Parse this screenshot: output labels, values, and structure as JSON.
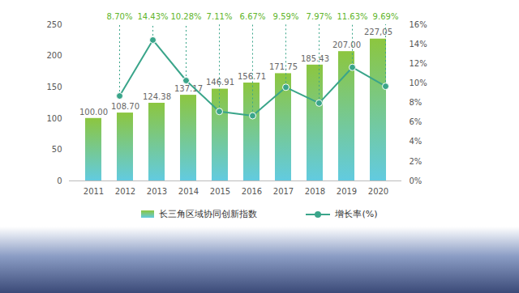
{
  "chart_data": {
    "type": "bar",
    "categories": [
      "2011",
      "2012",
      "2013",
      "2014",
      "2015",
      "2016",
      "2017",
      "2018",
      "2019",
      "2020"
    ],
    "series": [
      {
        "name": "长三角区域协同创新指数",
        "type": "bar",
        "color": "#8cc63f",
        "values": [
          100.0,
          108.7,
          124.38,
          137.17,
          146.91,
          156.71,
          171.75,
          185.43,
          207.0,
          227.05
        ],
        "value_labels": [
          "100.00",
          "108.70",
          "124.38",
          "137.17",
          "146.91",
          "156.71",
          "171.75",
          "185.43",
          "207.00",
          "227,05"
        ]
      },
      {
        "name": "增长率(%)",
        "type": "line",
        "axis": "y2",
        "color": "#3aa58a",
        "marker": "circle",
        "values": [
          null,
          8.7,
          14.43,
          10.28,
          7.11,
          6.67,
          9.59,
          7.97,
          11.63,
          9.69
        ],
        "value_labels": [
          null,
          "8.70%",
          "14.43%",
          "10.28%",
          "7.11%",
          "6.67%",
          "9.59%",
          "7.97%",
          "11.63%",
          "9.69%"
        ]
      }
    ],
    "ylim": [
      0,
      250
    ],
    "yticks": [
      0,
      50,
      100,
      150,
      200,
      250
    ],
    "y2lim": [
      0,
      16
    ],
    "y2ticks": [
      {
        "value": 0,
        "label": "0%"
      },
      {
        "value": 2,
        "label": "2%"
      },
      {
        "value": 4,
        "label": "4%"
      },
      {
        "value": 6,
        "label": "6%"
      },
      {
        "value": 8,
        "label": "8%"
      },
      {
        "value": 10,
        "label": "10%"
      },
      {
        "value": 12,
        "label": "12%"
      },
      {
        "value": 14,
        "label": "14%"
      },
      {
        "value": 16,
        "label": "16%"
      }
    ],
    "data_labels": true,
    "legend": "bottom"
  }
}
